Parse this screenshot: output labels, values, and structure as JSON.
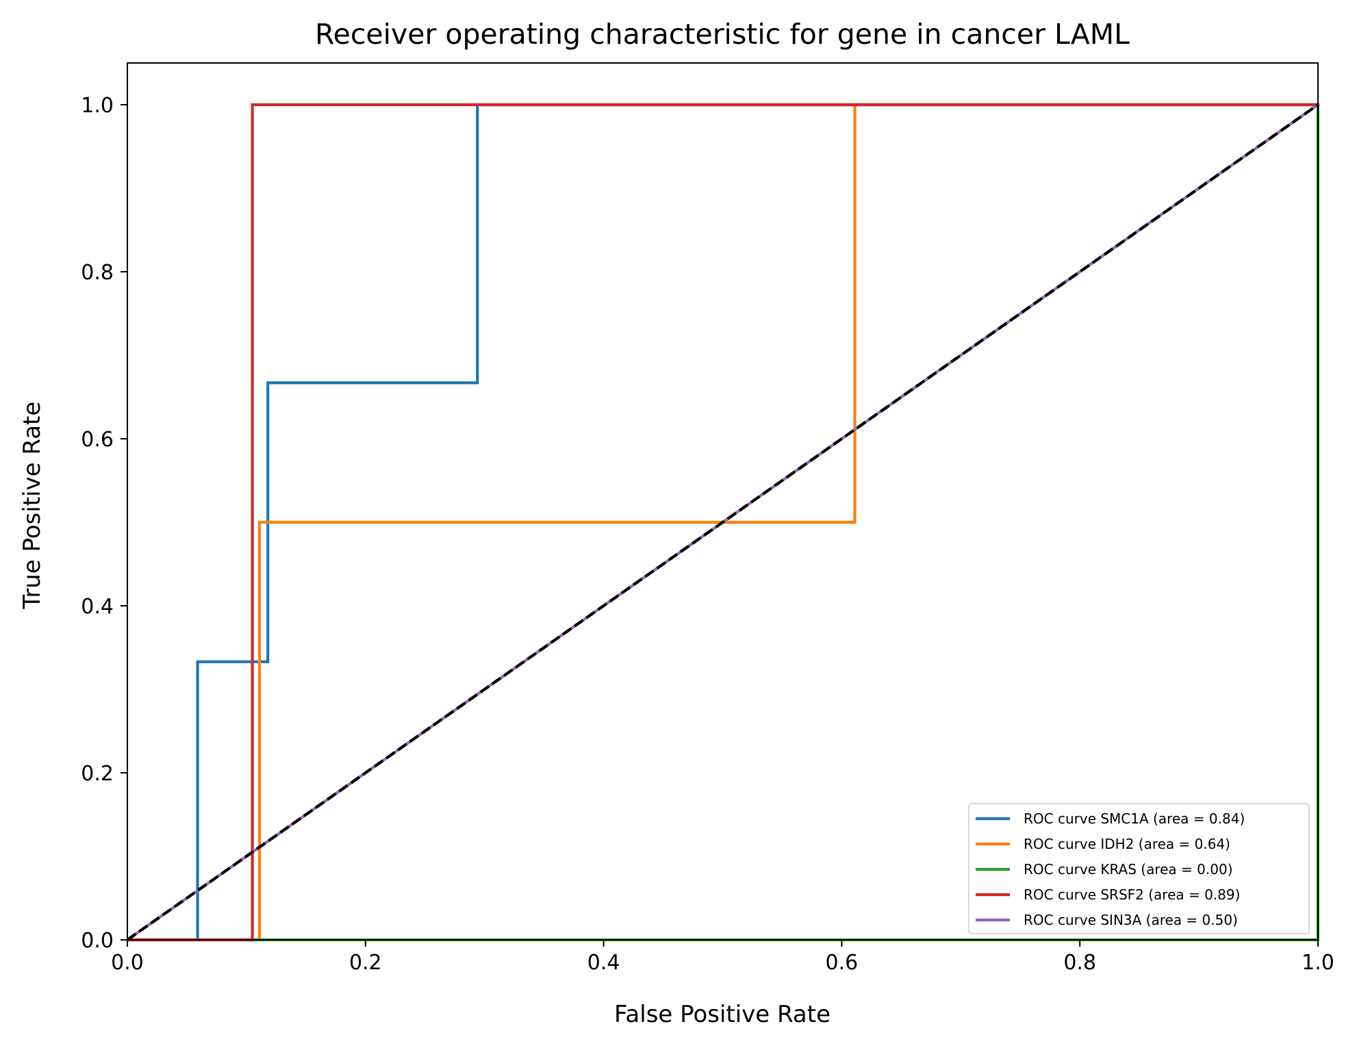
{
  "chart_data": {
    "type": "line",
    "title": "Receiver operating characteristic for gene in cancer LAML",
    "xlabel": "False Positive Rate",
    "ylabel": "True Positive Rate",
    "xlim": [
      0.0,
      1.0
    ],
    "ylim": [
      0.0,
      1.05
    ],
    "xticks": [
      0.0,
      0.2,
      0.4,
      0.6,
      0.8,
      1.0
    ],
    "yticks": [
      0.0,
      0.2,
      0.4,
      0.6,
      0.8,
      1.0
    ],
    "xtick_labels": [
      "0.0",
      "0.2",
      "0.4",
      "0.6",
      "0.8",
      "1.0"
    ],
    "ytick_labels": [
      "0.0",
      "0.2",
      "0.4",
      "0.6",
      "0.8",
      "1.0"
    ],
    "grid": false,
    "legend_position": "lower right",
    "series": [
      {
        "name": "ROC curve SMC1A (area = 0.84)",
        "color": "#1f77b4",
        "x": [
          0.0,
          0.059,
          0.059,
          0.118,
          0.118,
          0.294,
          0.294,
          1.0
        ],
        "y": [
          0.0,
          0.0,
          0.333,
          0.333,
          0.667,
          0.667,
          1.0,
          1.0
        ]
      },
      {
        "name": "ROC curve IDH2 (area = 0.64)",
        "color": "#ff7f0e",
        "x": [
          0.0,
          0.111,
          0.111,
          0.611,
          0.611,
          1.0
        ],
        "y": [
          0.0,
          0.0,
          0.5,
          0.5,
          1.0,
          1.0
        ]
      },
      {
        "name": "ROC curve KRAS (area = 0.00)",
        "color": "#2ca02c",
        "x": [
          0.0,
          1.0,
          1.0
        ],
        "y": [
          0.0,
          0.0,
          1.0
        ]
      },
      {
        "name": "ROC curve SRSF2 (area = 0.89)",
        "color": "#d62728",
        "x": [
          0.0,
          0.105,
          0.105,
          1.0
        ],
        "y": [
          0.0,
          0.0,
          1.0,
          1.0
        ]
      },
      {
        "name": "ROC curve SIN3A (area = 0.50)",
        "color": "#9467bd",
        "x": [
          0.0,
          1.0
        ],
        "y": [
          0.0,
          1.0
        ]
      }
    ],
    "reference_line": {
      "color": "#000000",
      "style": "dashed",
      "x": [
        0.0,
        1.0
      ],
      "y": [
        0.0,
        1.0
      ]
    }
  }
}
